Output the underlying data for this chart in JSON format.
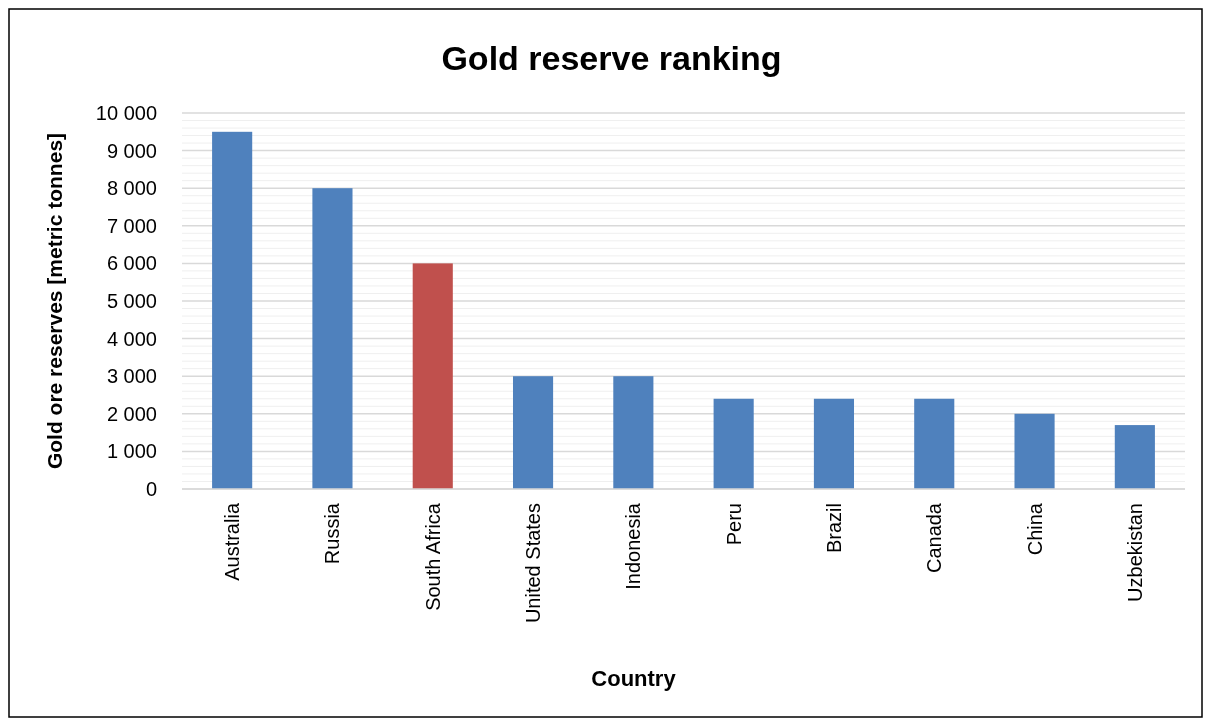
{
  "chart_data": {
    "type": "bar",
    "title": "Gold reserve ranking",
    "xlabel": "Country",
    "ylabel": "Gold ore reserves [metric tonnes]",
    "categories": [
      "Australia",
      "Russia",
      "South Africa",
      "United States",
      "Indonesia",
      "Peru",
      "Brazil",
      "Canada",
      "China",
      "Uzbekistan"
    ],
    "values": [
      9500,
      8000,
      6000,
      3000,
      3000,
      2400,
      2400,
      2400,
      2000,
      1700
    ],
    "colors": [
      "#4f81bd",
      "#4f81bd",
      "#c0504d",
      "#4f81bd",
      "#4f81bd",
      "#4f81bd",
      "#4f81bd",
      "#4f81bd",
      "#4f81bd",
      "#4f81bd"
    ],
    "ylim": [
      0,
      10000
    ],
    "yticks": [
      {
        "value": 0,
        "label": "0"
      },
      {
        "value": 200,
        "label": null
      },
      {
        "value": 400,
        "label": null
      },
      {
        "value": 600,
        "label": null
      },
      {
        "value": 800,
        "label": null
      },
      {
        "value": 1000,
        "label": "1 000"
      },
      {
        "value": 1200,
        "label": null
      },
      {
        "value": 1400,
        "label": null
      },
      {
        "value": 1600,
        "label": null
      },
      {
        "value": 1800,
        "label": null
      },
      {
        "value": 2000,
        "label": "2 000"
      },
      {
        "value": 2200,
        "label": null
      },
      {
        "value": 2400,
        "label": null
      },
      {
        "value": 2600,
        "label": null
      },
      {
        "value": 2800,
        "label": null
      },
      {
        "value": 3000,
        "label": "3 000"
      },
      {
        "value": 3200,
        "label": null
      },
      {
        "value": 3400,
        "label": null
      },
      {
        "value": 3600,
        "label": null
      },
      {
        "value": 3800,
        "label": null
      },
      {
        "value": 4000,
        "label": "4 000"
      },
      {
        "value": 4200,
        "label": null
      },
      {
        "value": 4400,
        "label": null
      },
      {
        "value": 4600,
        "label": null
      },
      {
        "value": 4800,
        "label": null
      },
      {
        "value": 5000,
        "label": "5 000"
      },
      {
        "value": 5200,
        "label": null
      },
      {
        "value": 5400,
        "label": null
      },
      {
        "value": 5600,
        "label": null
      },
      {
        "value": 5800,
        "label": null
      },
      {
        "value": 6000,
        "label": "6 000"
      },
      {
        "value": 6200,
        "label": null
      },
      {
        "value": 6400,
        "label": null
      },
      {
        "value": 6600,
        "label": null
      },
      {
        "value": 6800,
        "label": null
      },
      {
        "value": 7000,
        "label": "7 000"
      },
      {
        "value": 7200,
        "label": null
      },
      {
        "value": 7400,
        "label": null
      },
      {
        "value": 7600,
        "label": null
      },
      {
        "value": 7800,
        "label": null
      },
      {
        "value": 8000,
        "label": "8 000"
      },
      {
        "value": 8200,
        "label": null
      },
      {
        "value": 8400,
        "label": null
      },
      {
        "value": 8600,
        "label": null
      },
      {
        "value": 8800,
        "label": null
      },
      {
        "value": 9000,
        "label": "9 000"
      },
      {
        "value": 9200,
        "label": null
      },
      {
        "value": 9400,
        "label": null
      },
      {
        "value": 9600,
        "label": null
      },
      {
        "value": 9800,
        "label": null
      },
      {
        "value": 10000,
        "label": "10 000"
      }
    ],
    "grid": "y"
  }
}
